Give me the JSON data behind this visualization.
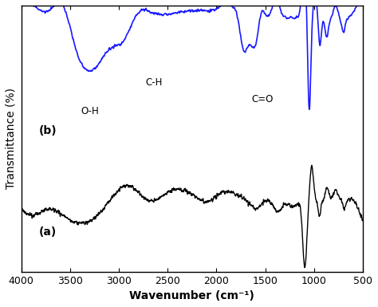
{
  "xlabel": "Wavenumber (cm⁻¹)",
  "ylabel": "Transmittance (%)",
  "xlim": [
    4000,
    500
  ],
  "ylim": [
    0.0,
    1.0
  ],
  "background_color": "#ffffff",
  "line_color_a": "#000000",
  "line_color_b": "#1a1aff",
  "label_a": "(b)",
  "label_b": "(a)",
  "ann_oh": "O-H",
  "ann_ch": "C-H",
  "ann_co": "C=O",
  "xticks": [
    4000,
    3500,
    3000,
    2500,
    2000,
    1500,
    1000,
    500
  ]
}
